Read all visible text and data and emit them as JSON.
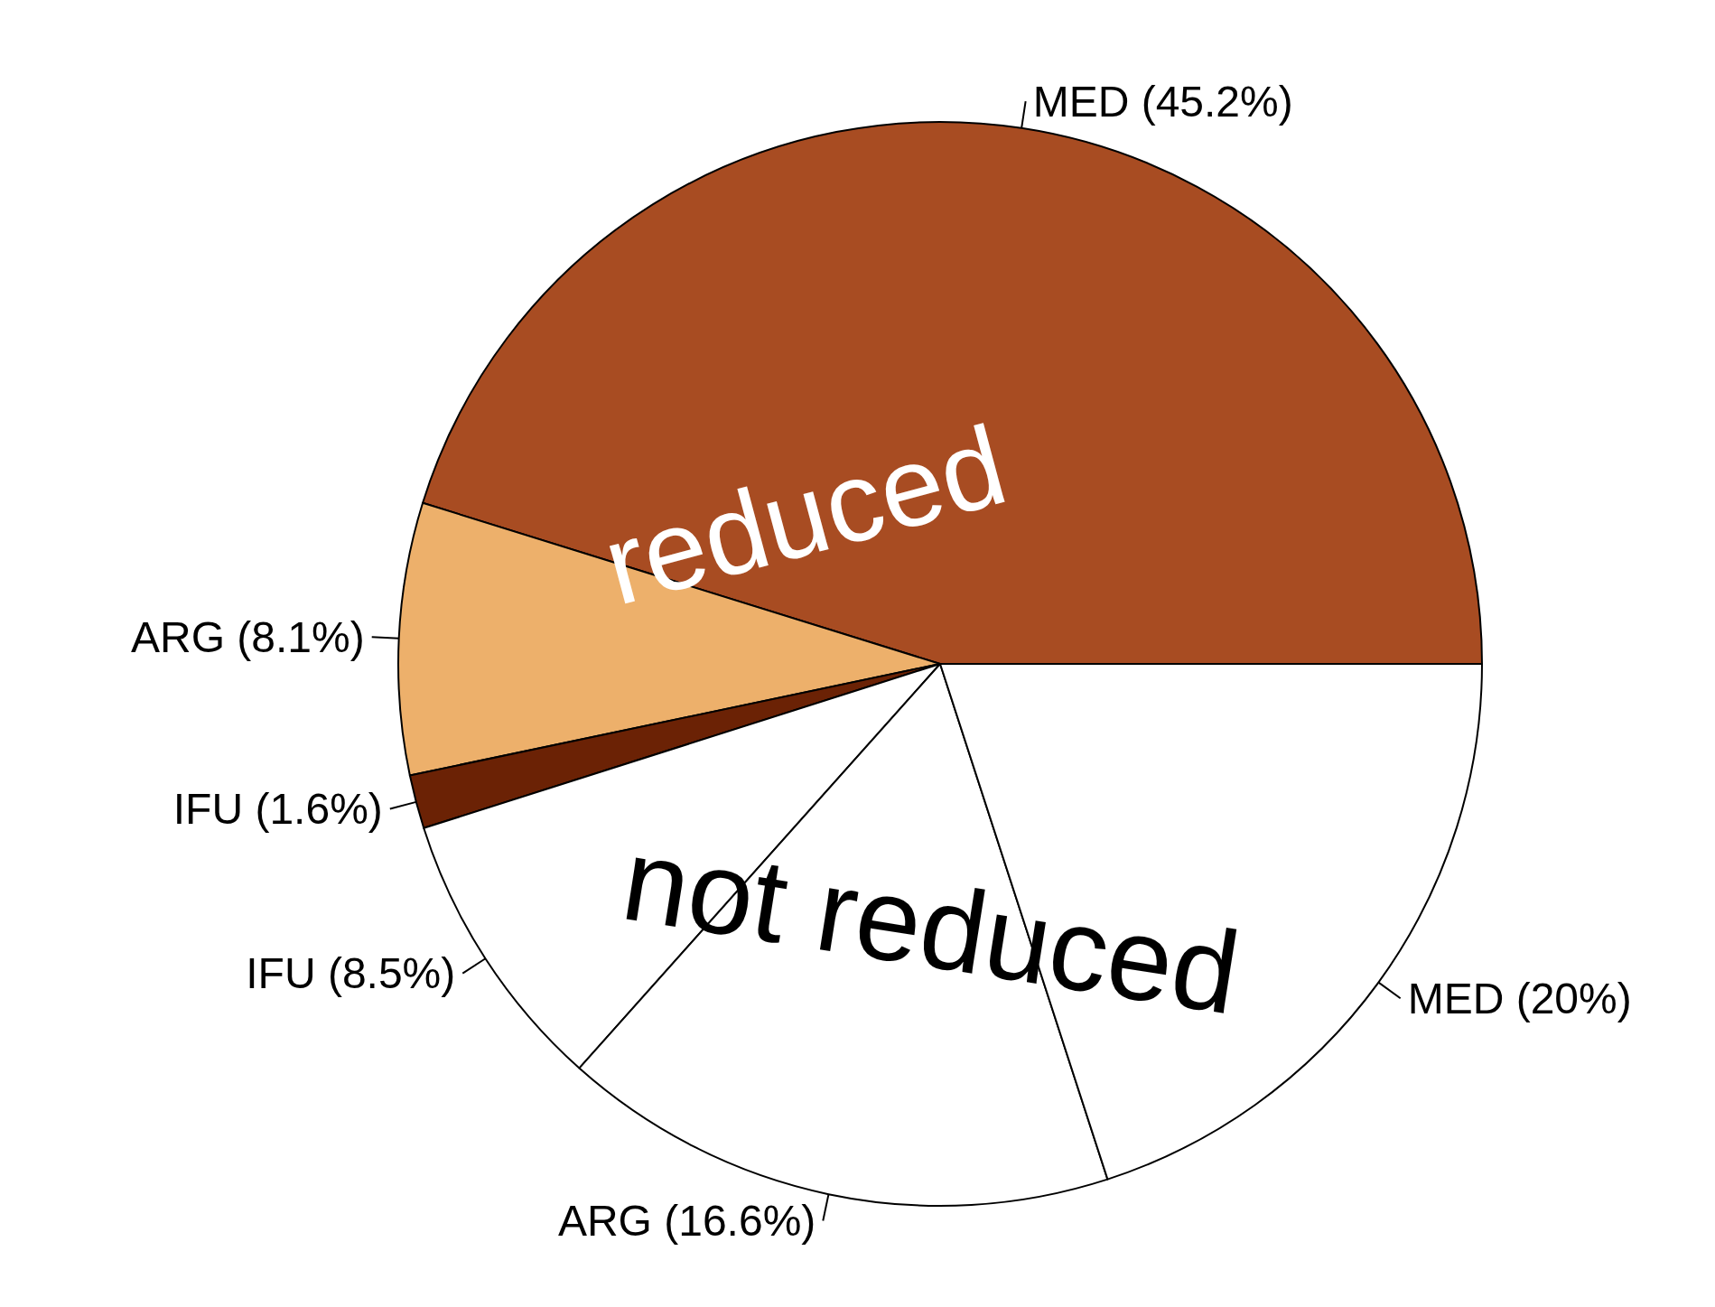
{
  "chart_data": {
    "type": "pie",
    "categories": [
      "MED (45.2%)",
      "ARG (8.1%)",
      "IFU (1.6%)",
      "IFU (8.5%)",
      "ARG (16.6%)",
      "MED (20%)"
    ],
    "values": [
      45.2,
      8.1,
      1.6,
      8.5,
      16.6,
      20
    ],
    "colors": [
      "#a84c22",
      "#edb06b",
      "#6b2205",
      "#ffffff",
      "#ffffff",
      "#ffffff"
    ],
    "annotations": [
      "reduced",
      "not reduced"
    ]
  }
}
